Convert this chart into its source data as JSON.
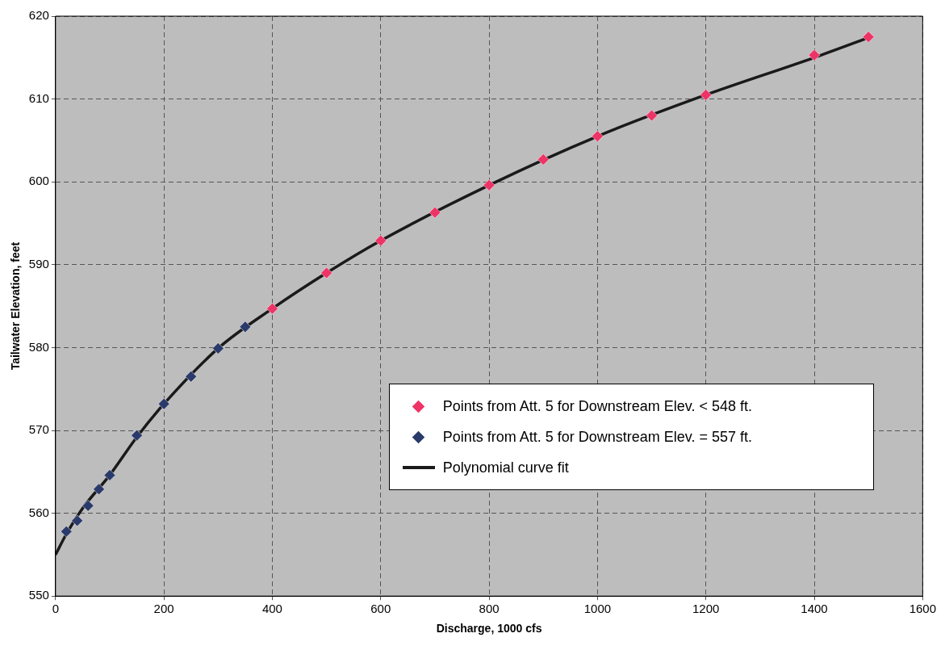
{
  "chart_data": {
    "type": "scatter",
    "xlabel": "Discharge, 1000 cfs",
    "ylabel": "Tailwater Elevation, feet",
    "xlim": [
      0,
      1600
    ],
    "xticks": [
      0,
      200,
      400,
      600,
      800,
      1000,
      1200,
      1400,
      1600
    ],
    "ylim": [
      550,
      620
    ],
    "yticks": [
      550,
      560,
      570,
      580,
      590,
      600,
      610,
      620
    ],
    "grid": true,
    "legend": "bottom right",
    "series": [
      {
        "name": "Points from Att. 5 for Downstream Elev. < 548 ft.",
        "marker": "diamond",
        "color": "#ee3366",
        "x": [
          400,
          500,
          600,
          700,
          800,
          900,
          1000,
          1100,
          1200,
          1400,
          1500
        ],
        "values": [
          584.7,
          589.0,
          592.9,
          596.3,
          599.6,
          602.7,
          605.5,
          608.0,
          610.5,
          615.3,
          617.5
        ]
      },
      {
        "name": "Points from Att. 5 for Downstream Elev. = 557 ft.",
        "marker": "diamond",
        "color": "#2a3a6a",
        "x": [
          20,
          40,
          60,
          80,
          100,
          150,
          200,
          250,
          300,
          350
        ],
        "values": [
          557.8,
          559.1,
          560.9,
          562.9,
          564.6,
          569.4,
          573.2,
          576.5,
          579.9,
          582.5
        ]
      },
      {
        "name": "Polynomial curve fit",
        "type": "line",
        "marker": "none",
        "line_style": "solid",
        "color": "#1a1a1a",
        "x": [
          0,
          20,
          50,
          100,
          150,
          200,
          300,
          400,
          500,
          600,
          800,
          1000,
          1200,
          1400,
          1500
        ],
        "values": [
          555.0,
          557.5,
          560.6,
          564.6,
          569.2,
          573.2,
          579.9,
          584.7,
          589.0,
          592.9,
          599.6,
          605.5,
          610.5,
          615.0,
          617.4
        ]
      }
    ]
  }
}
